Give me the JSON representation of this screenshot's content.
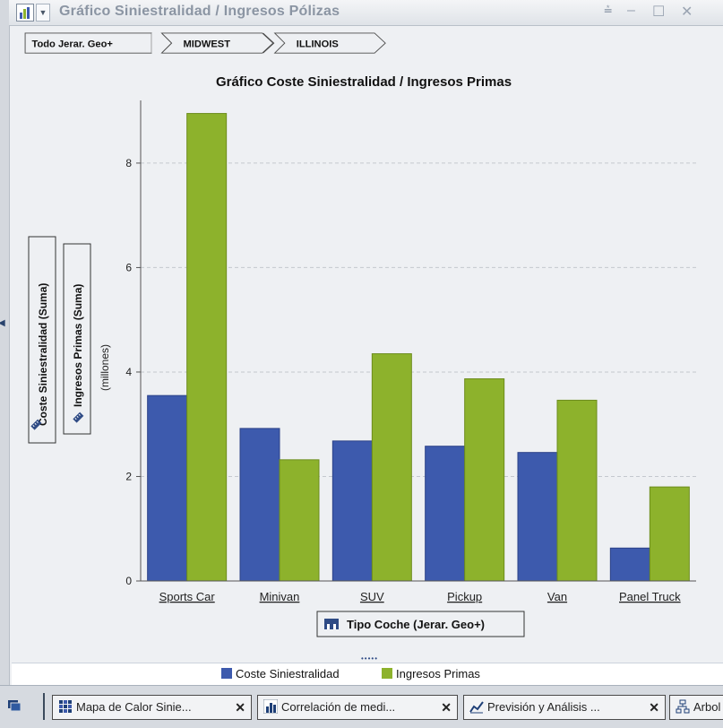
{
  "window": {
    "title": "Gráfico Siniestralidad / Ingresos Pólizas",
    "controls": [
      "filter-icon",
      "minimize-icon",
      "maximize-icon",
      "close-icon"
    ]
  },
  "breadcrumb": {
    "items": [
      {
        "label": "Todo Jerar. Geo+"
      },
      {
        "label": "MIDWEST"
      },
      {
        "label": "ILLINOIS"
      }
    ]
  },
  "chart_data": {
    "type": "bar",
    "title": "Gráfico Coste Siniestralidad / Ingresos Primas",
    "xlabel": "Tipo Coche (Jerar. Geo+)",
    "ylabel_series": [
      "Coste Siniestralidad (Suma)",
      "Ingresos Primas (Suma)"
    ],
    "yunit": "(millones)",
    "categories": [
      "Sports Car",
      "Minivan",
      "SUV",
      "Pickup",
      "Van",
      "Panel Truck"
    ],
    "series": [
      {
        "name": "Coste Siniestralidad",
        "color": "#3d5aad",
        "values": [
          3.55,
          2.92,
          2.68,
          2.58,
          2.46,
          0.63
        ]
      },
      {
        "name": "Ingresos Primas",
        "color": "#8db22c",
        "values": [
          8.95,
          2.32,
          4.35,
          3.87,
          3.46,
          1.8
        ]
      }
    ],
    "ylim": [
      0,
      9.2
    ],
    "yticks": [
      "0",
      "2",
      "4",
      "6",
      "8"
    ],
    "grid": true,
    "legend_position": "bottom"
  },
  "legend": {
    "items": [
      {
        "label": "Coste Siniestralidad",
        "color": "#3d5aad"
      },
      {
        "label": "Ingresos Primas",
        "color": "#8db22c"
      }
    ]
  },
  "taskbar": {
    "tabs": [
      {
        "label": "Mapa de Calor Sinie...",
        "icon": "heatmap-icon"
      },
      {
        "label": "Correlación de medi...",
        "icon": "bar-chart-icon"
      },
      {
        "label": "Previsión y Análisis ...",
        "icon": "line-chart-icon"
      },
      {
        "label": "Arbol",
        "icon": "tree-icon"
      }
    ]
  }
}
